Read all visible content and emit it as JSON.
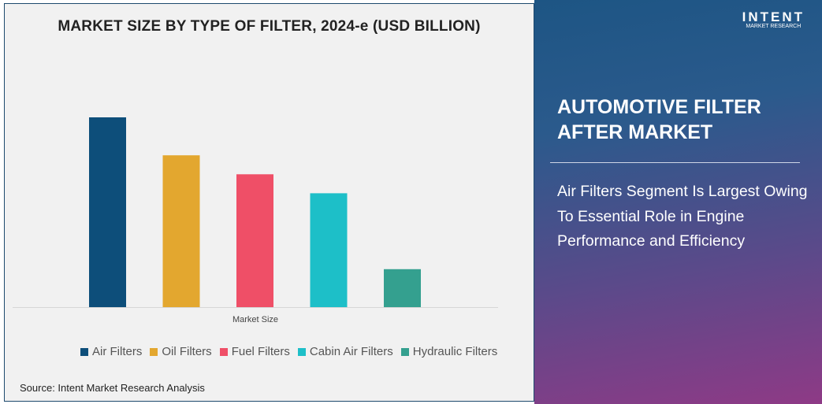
{
  "chart_data": {
    "type": "bar",
    "title": "MARKET SIZE BY TYPE OF FILTER, 2024-e (USD BILLION)",
    "xlabel": "Market Size",
    "ylabel": "",
    "categories": [
      "Air Filters",
      "Oil Filters",
      "Fuel Filters",
      "Cabin Air Filters",
      "Hydraulic Filters"
    ],
    "values": [
      1.0,
      0.8,
      0.7,
      0.6,
      0.2
    ],
    "colors": [
      "#0d4e7a",
      "#e3a72f",
      "#ef4f67",
      "#1dbfc8",
      "#34a08f"
    ],
    "legend_position": "bottom",
    "grid": false
  },
  "source": "Source: Intent Market Research Analysis",
  "logo": {
    "name": "INTENT",
    "tagline": "MARKET RESEARCH"
  },
  "side": {
    "heading": "AUTOMOTIVE FILTER AFTER MARKET",
    "subtext": "Air Filters Segment Is Largest Owing To Essential Role in Engine Performance and Efficiency"
  }
}
